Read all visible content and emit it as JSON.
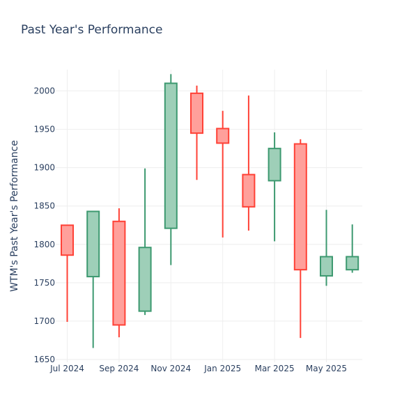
{
  "chart_data": {
    "type": "candlestick",
    "title": "Past Year's Performance",
    "xlabel": "",
    "ylabel": "WTM's Past Year's Performance",
    "ylim": [
      1650,
      2040
    ],
    "y_ticks": [
      1650,
      1700,
      1750,
      1800,
      1850,
      1900,
      1950,
      2000
    ],
    "x_ticks": [
      {
        "label": "Jul 2024",
        "index": 0
      },
      {
        "label": "Sep 2024",
        "index": 2
      },
      {
        "label": "Nov 2024",
        "index": 4
      },
      {
        "label": "Jan 2025",
        "index": 6
      },
      {
        "label": "Mar 2025",
        "index": 8
      },
      {
        "label": "May 2025",
        "index": 10
      }
    ],
    "grid": true,
    "colors": {
      "increasing_line": "#3d9970",
      "increasing_fill": "#9ecfb8",
      "decreasing_line": "#ff4136",
      "decreasing_fill": "#ffa09b",
      "grid": "#eeeeee",
      "text": "#2a3f5f"
    },
    "candles": [
      {
        "period": "Jul 2024",
        "open": 1825,
        "high": 1825,
        "low": 1699,
        "close": 1786
      },
      {
        "period": "Aug 2024",
        "open": 1758,
        "high": 1843,
        "low": 1665,
        "close": 1843
      },
      {
        "period": "Sep 2024",
        "open": 1830,
        "high": 1847,
        "low": 1679,
        "close": 1695
      },
      {
        "period": "Oct 2024",
        "open": 1713,
        "high": 1899,
        "low": 1708,
        "close": 1796
      },
      {
        "period": "Nov 2024",
        "open": 1821,
        "high": 2022,
        "low": 1773,
        "close": 2010
      },
      {
        "period": "Dec 2024",
        "open": 1997,
        "high": 2007,
        "low": 1884,
        "close": 1945
      },
      {
        "period": "Jan 2025",
        "open": 1951,
        "high": 1974,
        "low": 1809,
        "close": 1932
      },
      {
        "period": "Feb 2025",
        "open": 1891,
        "high": 1994,
        "low": 1818,
        "close": 1849
      },
      {
        "period": "Mar 2025",
        "open": 1883,
        "high": 1946,
        "low": 1804,
        "close": 1925
      },
      {
        "period": "Apr 2025",
        "open": 1931,
        "high": 1937,
        "low": 1678,
        "close": 1767
      },
      {
        "period": "May 2025",
        "open": 1759,
        "high": 1845,
        "low": 1746,
        "close": 1784
      },
      {
        "period": "Jun 2025",
        "open": 1767,
        "high": 1826,
        "low": 1763,
        "close": 1784
      }
    ]
  }
}
